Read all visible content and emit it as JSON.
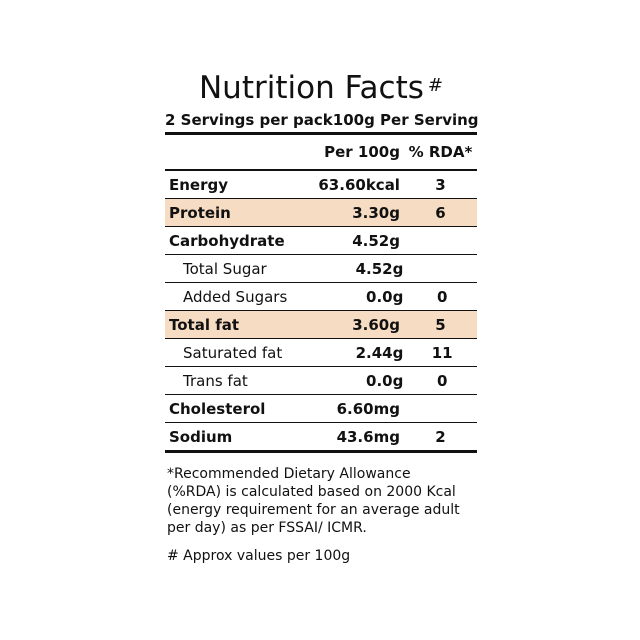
{
  "title": "Nutrition Facts",
  "title_mark": "#",
  "servings_per_pack": "2 Servings per pack",
  "serving_size": "100g Per Serving",
  "columns": {
    "per100g": "Per 100g",
    "rda": "% RDA*"
  },
  "nutrients": [
    {
      "name": "Energy",
      "value": "63.60kcal",
      "rda": "3"
    },
    {
      "name": "Protein",
      "value": "3.30g",
      "rda": "6"
    },
    {
      "name": "Carbohydrate",
      "value": "4.52g",
      "rda": ""
    },
    {
      "name": "Total Sugar",
      "value": "4.52g",
      "rda": ""
    },
    {
      "name": "Added Sugars",
      "value": "0.0g",
      "rda": "0"
    },
    {
      "name": "Total fat",
      "value": "3.60g",
      "rda": "5"
    },
    {
      "name": "Saturated fat",
      "value": "2.44g",
      "rda": "11"
    },
    {
      "name": "Trans fat",
      "value": "0.0g",
      "rda": "0"
    },
    {
      "name": "Cholesterol",
      "value": "6.60mg",
      "rda": ""
    },
    {
      "name": "Sodium",
      "value": "43.6mg",
      "rda": "2"
    }
  ],
  "highlight_color": "#f6dcc3",
  "footnote_rda": "*Recommended Dietary Allowance\n(%RDA) is calculated based on 2000 Kcal\n(energy requirement for an average adult\nper day) as per FSSAI/ ICMR.",
  "footnote_approx": "# Approx values per 100g"
}
